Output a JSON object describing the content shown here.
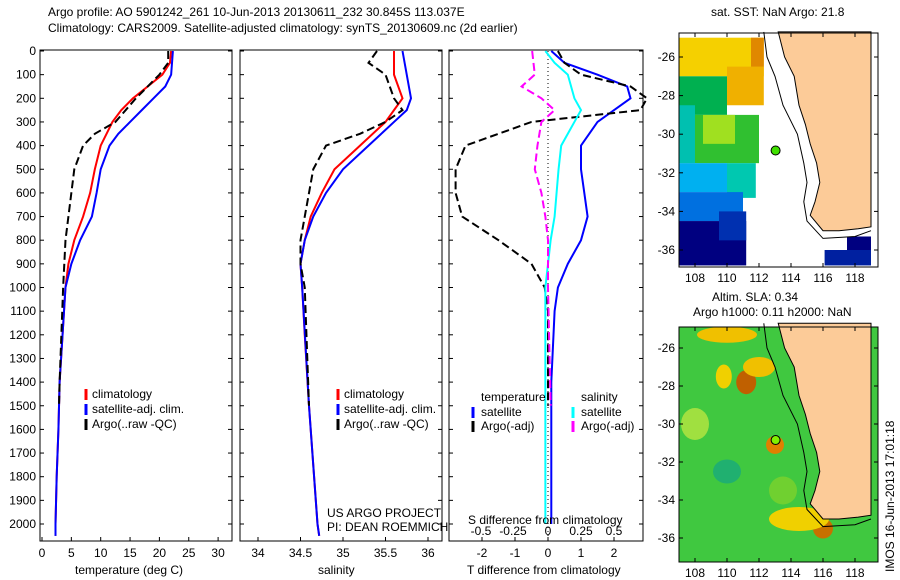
{
  "title_line1": "Argo profile: AO 5901242_261 10-Jun-2013 20130611_232 30.845S 113.037E",
  "title_line2": "Climatology: CARS2009. Satellite-adjusted climatology: synTS_20130609.nc (2d earlier)",
  "side_stamp": "IMOS 16-Jun-2013 17:01:18",
  "colors": {
    "climatology": "#ff0000",
    "satellite": "#0000ff",
    "argo": "#000000",
    "sal_sat": "#00ffff",
    "sal_argo": "#ff00ff",
    "land": "#fccb98"
  },
  "chart_data": [
    {
      "type": "line",
      "xlabel": "temperature (deg C)",
      "ylabel": "",
      "xlim": [
        -1.5,
        31
      ],
      "ylim": [
        2050,
        0
      ],
      "xticks": [
        "0",
        "5",
        "10",
        "15",
        "20",
        "25",
        "30"
      ],
      "yticks": [
        "0",
        "100",
        "200",
        "300",
        "400",
        "500",
        "600",
        "700",
        "800",
        "900",
        "1000",
        "1100",
        "1200",
        "1300",
        "1400",
        "1500",
        "1600",
        "1700",
        "1800",
        "1900",
        "2000"
      ],
      "legend": [
        "climatology",
        "satellite-adj. clim.",
        "Argo(..raw -QC)"
      ],
      "series": [
        {
          "name": "climatology",
          "color": "#ff0000",
          "dash": false,
          "points": [
            [
              22,
              0
            ],
            [
              21.8,
              50
            ],
            [
              20.5,
              100
            ],
            [
              18,
              150
            ],
            [
              15.5,
              200
            ],
            [
              13.5,
              250
            ],
            [
              12,
              300
            ],
            [
              10,
              400
            ],
            [
              9,
              500
            ],
            [
              8.2,
              600
            ],
            [
              7,
              700
            ],
            [
              5.5,
              800
            ],
            [
              4.5,
              900
            ],
            [
              4,
              1000
            ],
            [
              3.5,
              1200
            ],
            [
              3,
              1400
            ],
            [
              2.8,
              1600
            ],
            [
              2.5,
              1800
            ],
            [
              2.3,
              2000
            ],
            [
              2.3,
              2050
            ]
          ]
        },
        {
          "name": "satellite-adj. clim.",
          "color": "#0000ff",
          "dash": false,
          "points": [
            [
              22.3,
              0
            ],
            [
              22,
              100
            ],
            [
              21,
              150
            ],
            [
              19,
              200
            ],
            [
              17,
              250
            ],
            [
              15,
              300
            ],
            [
              13,
              350
            ],
            [
              11.5,
              400
            ],
            [
              10,
              500
            ],
            [
              9.3,
              600
            ],
            [
              8.5,
              700
            ],
            [
              6.5,
              800
            ],
            [
              5,
              900
            ],
            [
              4,
              1000
            ],
            [
              3.5,
              1200
            ],
            [
              3,
              1400
            ],
            [
              2.8,
              1600
            ],
            [
              2.5,
              1800
            ],
            [
              2.3,
              2000
            ],
            [
              2.3,
              2050
            ]
          ]
        },
        {
          "name": "Argo(..raw -QC)",
          "color": "#000000",
          "dash": true,
          "points": [
            [
              21.5,
              0
            ],
            [
              21.5,
              50
            ],
            [
              20,
              100
            ],
            [
              16,
              200
            ],
            [
              12.5,
              300
            ],
            [
              9,
              350
            ],
            [
              7,
              400
            ],
            [
              5.5,
              500
            ],
            [
              5,
              600
            ],
            [
              4.5,
              700
            ],
            [
              4,
              800
            ],
            [
              3.8,
              900
            ],
            [
              3.6,
              1000
            ],
            [
              3.3,
              1200
            ],
            [
              3,
              1400
            ],
            [
              2.9,
              1500
            ]
          ]
        }
      ]
    },
    {
      "type": "line",
      "xlabel": "salinity",
      "xlim": [
        33.8,
        36.1
      ],
      "ylim": [
        2050,
        0
      ],
      "xticks": [
        "34",
        "34.5",
        "35",
        "35.5",
        "36"
      ],
      "legend": [
        "climatology",
        "satellite-adj. clim.",
        "Argo(..raw -QC)"
      ],
      "annotation": [
        "US ARGO PROJECT",
        "PI: DEAN ROEMMICH"
      ],
      "series": [
        {
          "name": "climatology",
          "color": "#ff0000",
          "dash": false,
          "points": [
            [
              35.6,
              0
            ],
            [
              35.6,
              100
            ],
            [
              35.7,
              200
            ],
            [
              35.6,
              250
            ],
            [
              35.5,
              300
            ],
            [
              35.2,
              400
            ],
            [
              34.9,
              500
            ],
            [
              34.75,
              600
            ],
            [
              34.62,
              700
            ],
            [
              34.55,
              800
            ],
            [
              34.5,
              900
            ],
            [
              34.52,
              1000
            ],
            [
              34.55,
              1200
            ],
            [
              34.6,
              1500
            ],
            [
              34.7,
              2000
            ],
            [
              34.72,
              2050
            ]
          ]
        },
        {
          "name": "satellite-adj. clim.",
          "color": "#0000ff",
          "dash": false,
          "points": [
            [
              35.7,
              0
            ],
            [
              35.75,
              100
            ],
            [
              35.8,
              200
            ],
            [
              35.75,
              250
            ],
            [
              35.6,
              300
            ],
            [
              35.3,
              400
            ],
            [
              35.0,
              500
            ],
            [
              34.8,
              600
            ],
            [
              34.65,
              700
            ],
            [
              34.55,
              800
            ],
            [
              34.5,
              900
            ],
            [
              34.52,
              1000
            ],
            [
              34.6,
              1500
            ],
            [
              34.7,
              2000
            ],
            [
              34.72,
              2050
            ]
          ]
        },
        {
          "name": "Argo(..raw -QC)",
          "color": "#000000",
          "dash": true,
          "points": [
            [
              35.4,
              0
            ],
            [
              35.3,
              50
            ],
            [
              35.5,
              100
            ],
            [
              35.6,
              200
            ],
            [
              35.7,
              250
            ],
            [
              35.5,
              300
            ],
            [
              35.2,
              350
            ],
            [
              34.8,
              400
            ],
            [
              34.65,
              500
            ],
            [
              34.6,
              600
            ],
            [
              34.55,
              700
            ],
            [
              34.5,
              800
            ],
            [
              34.5,
              900
            ],
            [
              34.55,
              1000
            ],
            [
              34.6,
              1500
            ]
          ]
        }
      ]
    },
    {
      "type": "line",
      "xlabel": "T difference from climatology",
      "x2label": "S difference from climatology",
      "xlim": [
        -3,
        3
      ],
      "ylim": [
        2050,
        0
      ],
      "xticks": [
        "-2",
        "-1",
        "0",
        "1",
        "2"
      ],
      "x2ticks": [
        "-0.5",
        "-0.25",
        "0",
        "0.25",
        "0.5"
      ],
      "legend_titles": [
        "temperature",
        "salinity"
      ],
      "legend": [
        "satellite",
        "Argo(-adj)",
        "satellite",
        "Argo(-adj)"
      ],
      "series": [
        {
          "name": "T satellite",
          "color": "#0000ff",
          "dash": false,
          "points": [
            [
              0.1,
              0
            ],
            [
              0.5,
              50
            ],
            [
              1.5,
              100
            ],
            [
              2.4,
              150
            ],
            [
              2.5,
              200
            ],
            [
              1.5,
              300
            ],
            [
              1.0,
              400
            ],
            [
              1.0,
              500
            ],
            [
              1.1,
              600
            ],
            [
              1.2,
              700
            ],
            [
              1.0,
              800
            ],
            [
              0.6,
              900
            ],
            [
              0.3,
              1000
            ],
            [
              0.2,
              1100
            ],
            [
              0.1,
              1400
            ],
            [
              0.1,
              2000
            ]
          ]
        },
        {
          "name": "T Argo(-adj)",
          "color": "#000000",
          "dash": true,
          "points": [
            [
              0.3,
              0
            ],
            [
              0.5,
              50
            ],
            [
              1,
              100
            ],
            [
              2.5,
              150
            ],
            [
              3,
              200
            ],
            [
              2.8,
              250
            ],
            [
              -0.5,
              300
            ],
            [
              -1.5,
              350
            ],
            [
              -2.5,
              400
            ],
            [
              -2.8,
              500
            ],
            [
              -2.8,
              600
            ],
            [
              -2.6,
              700
            ],
            [
              -1.5,
              800
            ],
            [
              -0.5,
              900
            ],
            [
              -0.1,
              1000
            ],
            [
              0,
              1100
            ],
            [
              0,
              1500
            ]
          ]
        },
        {
          "name": "S satellite",
          "color": "#00ffff",
          "dash": false,
          "scale": 4,
          "points": [
            [
              -0.02,
              0
            ],
            [
              0.05,
              50
            ],
            [
              0.15,
              100
            ],
            [
              0.2,
              200
            ],
            [
              0.25,
              250
            ],
            [
              0.2,
              300
            ],
            [
              0.1,
              400
            ],
            [
              0.08,
              500
            ],
            [
              0.05,
              700
            ],
            [
              0.02,
              800
            ],
            [
              0,
              900
            ],
            [
              -0.02,
              1000
            ],
            [
              -0.02,
              2000
            ]
          ]
        },
        {
          "name": "S Argo(-adj)",
          "color": "#ff00ff",
          "dash": true,
          "scale": 4,
          "points": [
            [
              -0.12,
              0
            ],
            [
              -0.1,
              100
            ],
            [
              -0.2,
              150
            ],
            [
              -0.05,
              200
            ],
            [
              0.05,
              250
            ],
            [
              -0.05,
              300
            ],
            [
              -0.08,
              400
            ],
            [
              -0.1,
              500
            ],
            [
              -0.05,
              600
            ],
            [
              -0.02,
              700
            ],
            [
              0,
              800
            ],
            [
              0,
              1000
            ],
            [
              0.02,
              1500
            ]
          ]
        }
      ]
    }
  ],
  "maps": [
    {
      "title": "sat. SST: NaN Argo: 21.8",
      "lon": [
        "108",
        "110",
        "112",
        "114",
        "116",
        "118"
      ],
      "lat": [
        "-26",
        "-28",
        "-30",
        "-32",
        "-34",
        "-36"
      ],
      "argo_lon": 113.037,
      "argo_lat": -30.845
    },
    {
      "title1": "Altim. SLA: 0.34",
      "title2": "Argo h1000: 0.11 h2000: NaN",
      "lon": [
        "108",
        "110",
        "112",
        "114",
        "116",
        "118"
      ],
      "lat": [
        "-26",
        "-28",
        "-30",
        "-32",
        "-34",
        "-36"
      ],
      "argo_lon": 113.037,
      "argo_lat": -30.845
    }
  ]
}
